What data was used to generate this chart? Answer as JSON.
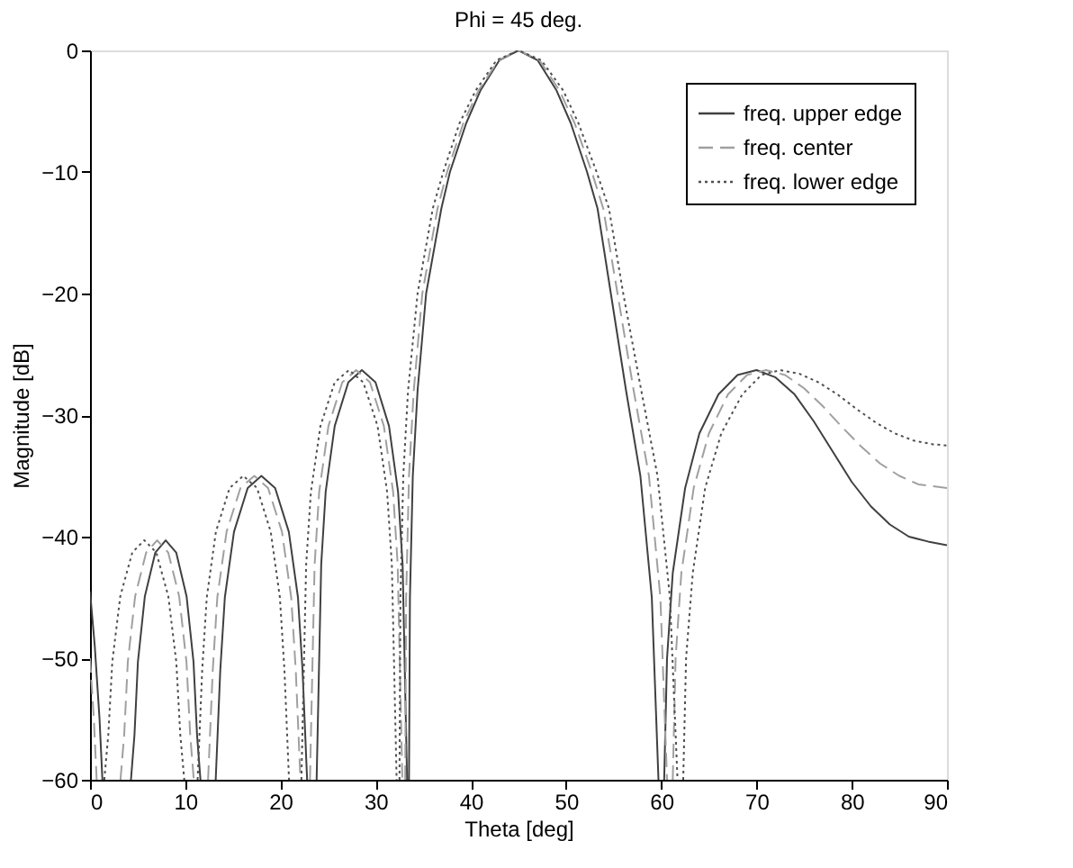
{
  "chart_data": {
    "type": "line",
    "title": "Phi = 45 deg.",
    "xlabel": "Theta [deg]",
    "ylabel": "Magnitude [dB]",
    "xlim": [
      0,
      90
    ],
    "xticks": [
      0,
      10,
      20,
      30,
      40,
      50,
      60,
      70,
      80,
      90
    ],
    "ylim": [
      -60,
      0
    ],
    "yticks": [
      -60,
      -50,
      -40,
      -30,
      -20,
      -10,
      0
    ],
    "grid": false,
    "legend": "top right",
    "marker": "none",
    "series": [
      {
        "name": "freq. upper edge",
        "color": "#404040",
        "line_style": "solid",
        "x": [
          0,
          0.5,
          1.0,
          1.3,
          2.8,
          4.3,
          4.67,
          5.03,
          5.76,
          6.86,
          7.95,
          9.05,
          10.14,
          10.87,
          11.24,
          11.6,
          12.4,
          13.2,
          13.68,
          14.16,
          15.12,
          16.56,
          18.0,
          19.44,
          20.88,
          21.84,
          22.32,
          22.8,
          23.3,
          23.8,
          24.28,
          24.75,
          25.7,
          27.13,
          28.55,
          29.98,
          31.4,
          32.35,
          32.83,
          33.3,
          33.4,
          33.5,
          33.6,
          33.9,
          34.4,
          35.3,
          36.9,
          37.8,
          39.5,
          41,
          43,
          45,
          47,
          49,
          50.5,
          52.2,
          53.3,
          54.7,
          56.3,
          57.8,
          59,
          59.7,
          60.0,
          60.3,
          60.6,
          61.2,
          62.5,
          64,
          66,
          68,
          70,
          72,
          74,
          76,
          78,
          80,
          82,
          84,
          86,
          88,
          90
        ],
        "values": [
          -44.5,
          -49,
          -55,
          -60,
          null,
          -60,
          -56.3,
          -50.3,
          -44.9,
          -41.3,
          -40.3,
          -41.3,
          -44.9,
          -50.3,
          -56.3,
          -60,
          null,
          -60,
          -51,
          -45,
          -39.6,
          -36,
          -35,
          -36,
          -39.6,
          -45,
          -51,
          -60,
          null,
          -60,
          -42.3,
          -36.3,
          -30.9,
          -27.3,
          -26.3,
          -27.3,
          -30.9,
          -36.3,
          -42.3,
          -60,
          null,
          -60,
          -45,
          -35,
          -28,
          -20,
          -13,
          -10,
          -6,
          -3.3,
          -0.8,
          0,
          -0.8,
          -3.3,
          -6,
          -10,
          -13,
          -20,
          -28,
          -35,
          -45,
          -60,
          null,
          -60,
          -50,
          -43,
          -36,
          -31.5,
          -28.3,
          -26.7,
          -26.3,
          -26.9,
          -28.3,
          -30.5,
          -33,
          -35.5,
          -37.5,
          -39,
          -40,
          -40.4,
          -40.7
        ]
      },
      {
        "name": "freq. center",
        "color": "#a0a0a0",
        "line_style": "dashed",
        "x": [
          0,
          0.4,
          0.7,
          2.0,
          3.2,
          3.59,
          3.97,
          4.74,
          5.9,
          7.05,
          8.21,
          9.36,
          10.13,
          10.52,
          10.9,
          11.6,
          12.4,
          12.89,
          13.37,
          14.34,
          15.8,
          17.25,
          18.7,
          20.16,
          21.13,
          21.61,
          22.1,
          22.6,
          23.1,
          23.59,
          24.07,
          25.04,
          26.5,
          27.95,
          29.4,
          30.86,
          31.83,
          32.31,
          32.8,
          32.95,
          33.1,
          33.2,
          33.5,
          34,
          34.9,
          36.5,
          37.5,
          39.2,
          40.8,
          42.9,
          45,
          47.2,
          49.3,
          50.9,
          52.7,
          53.9,
          55.4,
          57.1,
          58.7,
          59.9,
          60.6,
          60.9,
          61.2,
          61.5,
          62.1,
          63.4,
          65,
          67,
          69,
          71,
          73,
          75,
          77,
          79,
          81,
          83,
          85,
          87,
          90
        ],
        "values": [
          -50,
          -55,
          -60,
          null,
          -60,
          -56.3,
          -50.3,
          -44.9,
          -41.3,
          -40.3,
          -41.3,
          -44.9,
          -50.3,
          -56.3,
          -60,
          null,
          -60,
          -51,
          -45,
          -39.6,
          -36,
          -35,
          -36,
          -39.6,
          -45,
          -51,
          -60,
          null,
          -60,
          -42.3,
          -36.3,
          -30.9,
          -27.3,
          -26.3,
          -27.3,
          -30.9,
          -36.3,
          -42.3,
          -60,
          null,
          -60,
          -45,
          -35,
          -28,
          -20,
          -13,
          -10,
          -6,
          -3.3,
          -0.8,
          0,
          -0.8,
          -3.3,
          -6,
          -10,
          -13,
          -20,
          -28,
          -35,
          -45,
          -60,
          null,
          -60,
          -50,
          -43,
          -36,
          -31.5,
          -28.3,
          -26.7,
          -26.3,
          -26.7,
          -27.8,
          -29.3,
          -31,
          -32.6,
          -34,
          -35,
          -35.7,
          -36
        ]
      },
      {
        "name": "freq. lower edge",
        "color": "#505050",
        "line_style": "dotted",
        "x": [
          1.5,
          1.92,
          2.34,
          3.18,
          4.44,
          5.7,
          6.96,
          8.22,
          9.06,
          9.48,
          9.9,
          10.6,
          11.3,
          11.78,
          12.26,
          13.22,
          14.66,
          16.1,
          17.54,
          18.98,
          19.94,
          20.42,
          20.9,
          21.55,
          22.2,
          22.7,
          23.2,
          24.2,
          25.7,
          27.2,
          28.7,
          30.2,
          31.2,
          31.7,
          32.2,
          32.35,
          32.5,
          32.6,
          32.9,
          33.4,
          34.4,
          36,
          37.1,
          38.8,
          40.5,
          42.7,
          45,
          47.4,
          49.7,
          51.3,
          53.2,
          54.5,
          56,
          57.9,
          59.6,
          60.9,
          61.7,
          62.0,
          62.3,
          62.6,
          63.3,
          64.6,
          66.3,
          68.5,
          70.5,
          72.5,
          74.5,
          76.5,
          78.5,
          80.5,
          82.5,
          84.5,
          86.5,
          88.5,
          90
        ],
        "values": [
          -60,
          -56.3,
          -50.3,
          -44.9,
          -41.3,
          -40.3,
          -41.3,
          -44.9,
          -50.3,
          -56.3,
          -60,
          null,
          -60,
          -51,
          -45,
          -39.6,
          -36,
          -35,
          -36,
          -39.6,
          -45,
          -51,
          -60,
          null,
          -60,
          -42.3,
          -36.3,
          -30.9,
          -27.3,
          -26.3,
          -27.3,
          -30.9,
          -36.3,
          -42.3,
          -60,
          null,
          -60,
          -45,
          -35,
          -28,
          -20,
          -13,
          -10,
          -6,
          -3.3,
          -0.8,
          0,
          -0.8,
          -3.3,
          -6,
          -10,
          -13,
          -20,
          -28,
          -35,
          -45,
          -60,
          null,
          -60,
          -50,
          -43,
          -36,
          -31.5,
          -28.3,
          -26.7,
          -26.3,
          -26.6,
          -27.3,
          -28.3,
          -29.5,
          -30.6,
          -31.5,
          -32.1,
          -32.4,
          -32.5
        ]
      }
    ]
  }
}
